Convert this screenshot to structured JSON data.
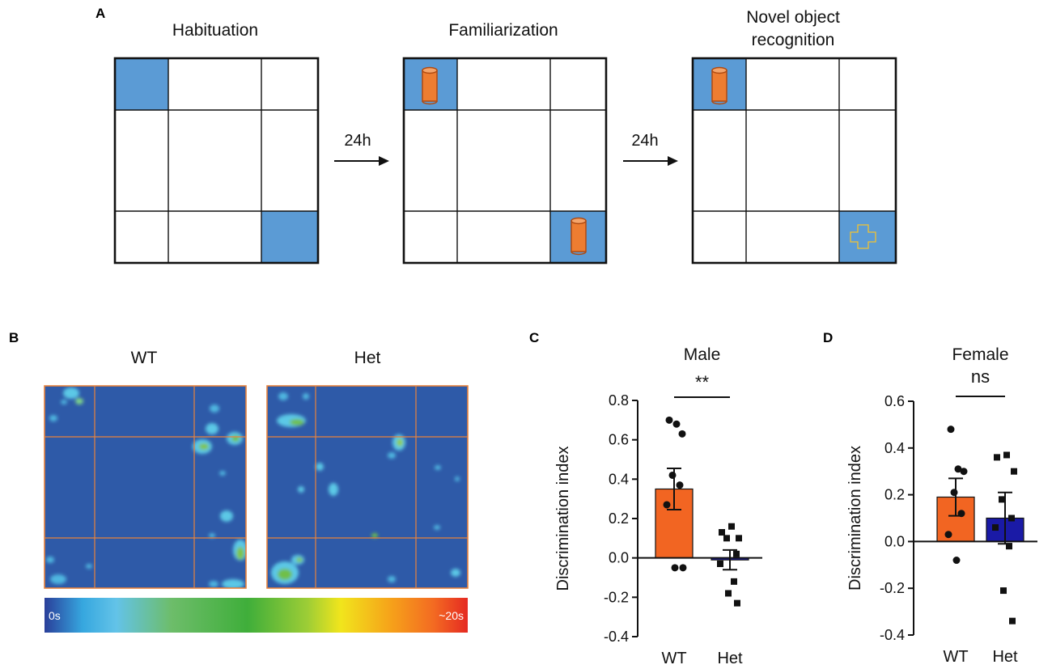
{
  "panels": {
    "a": {
      "label": "A",
      "stages": [
        {
          "title": "Habituation",
          "title2": ""
        },
        {
          "title": "Familiarization",
          "title2": ""
        },
        {
          "title": "Novel object",
          "title2": "recognition"
        }
      ],
      "arrows": [
        "24h",
        "24h"
      ]
    },
    "b": {
      "label": "B",
      "heatmaps": [
        "WT",
        "Het"
      ],
      "colorbar": {
        "min": "0s",
        "max": "~20s"
      }
    },
    "c": {
      "label": "C"
    },
    "d": {
      "label": "D"
    }
  },
  "colors": {
    "zone_blue": "#5b9bd5",
    "object_orange": "#ed7d31",
    "wt_bar": "#f26522",
    "het_bar": "#1a1aa6",
    "heat_bg": "#2e5aa8"
  },
  "chart_data": [
    {
      "type": "bar",
      "title": "Male",
      "categories": [
        "WT",
        "Het"
      ],
      "values": [
        0.35,
        -0.01
      ],
      "errors": [
        0.105,
        0.05
      ],
      "ylabel": "Discrimination index",
      "ylim": [
        -0.4,
        0.8
      ],
      "yticks": [
        -0.4,
        -0.2,
        0.0,
        0.2,
        0.4,
        0.6,
        0.8
      ],
      "yticklabels": [
        "-0.4",
        "-0.2",
        "0.0",
        "0.2",
        "0.4",
        "0.6",
        "0.8"
      ],
      "significance": "**",
      "points": {
        "WT": [
          0.7,
          0.68,
          0.63,
          0.42,
          0.37,
          0.27,
          -0.05,
          -0.05
        ],
        "Het": [
          0.16,
          0.13,
          0.1,
          0.1,
          0.02,
          -0.03,
          -0.12,
          -0.18,
          -0.23
        ]
      }
    },
    {
      "type": "bar",
      "title": "Female",
      "categories": [
        "WT",
        "Het"
      ],
      "values": [
        0.19,
        0.1
      ],
      "errors": [
        0.08,
        0.11
      ],
      "ylabel": "Discrimination index",
      "ylim": [
        -0.4,
        0.6
      ],
      "yticks": [
        -0.4,
        -0.2,
        0.0,
        0.2,
        0.4,
        0.6
      ],
      "yticklabels": [
        "-0.4",
        "-0.2",
        "0.0",
        "0.2",
        "0.4",
        "0.6"
      ],
      "significance": "ns",
      "points": {
        "WT": [
          0.48,
          0.31,
          0.3,
          0.21,
          0.12,
          0.03,
          -0.08
        ],
        "Het": [
          0.37,
          0.36,
          0.3,
          0.18,
          0.1,
          0.06,
          -0.02,
          -0.21,
          -0.34
        ]
      }
    }
  ]
}
